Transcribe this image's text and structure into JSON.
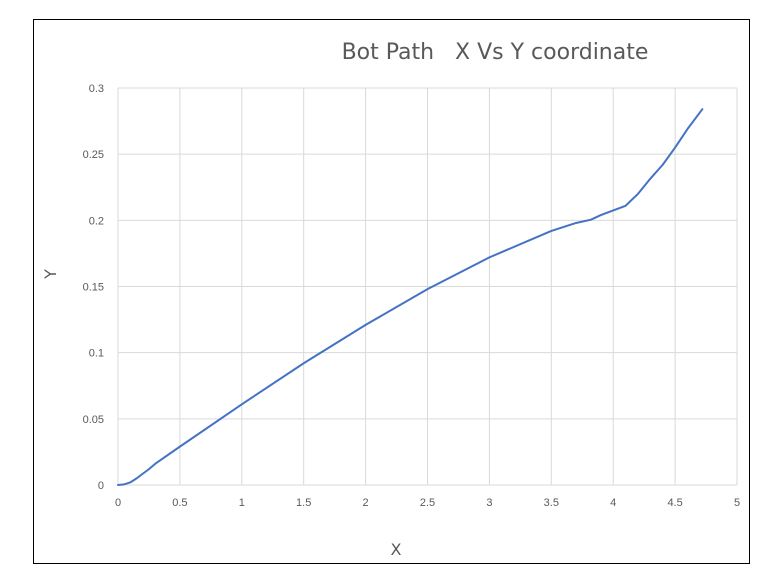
{
  "chart_data": {
    "type": "line",
    "title": "Bot Path   X Vs Y coordinate",
    "xlabel": "X",
    "ylabel": "Y",
    "xlim": [
      0,
      5
    ],
    "ylim": [
      0,
      0.3
    ],
    "x_ticks": [
      "0",
      "0.5",
      "1",
      "1.5",
      "2",
      "2.5",
      "3",
      "3.5",
      "4",
      "4.5",
      "5"
    ],
    "y_ticks": [
      "0",
      "0.05",
      "0.1",
      "0.15",
      "0.2",
      "0.25",
      "0.3"
    ],
    "grid": true,
    "legend": "none",
    "series": [
      {
        "color": "#4472c4",
        "x": [
          0,
          0.05,
          0.1,
          0.15,
          0.2,
          0.25,
          0.3,
          0.5,
          1.0,
          1.5,
          2.0,
          2.5,
          3.0,
          3.5,
          3.6,
          3.7,
          3.82,
          3.9,
          4.0,
          4.1,
          4.2,
          4.3,
          4.4,
          4.5,
          4.6,
          4.72
        ],
        "y": [
          0,
          0.0005,
          0.002,
          0.005,
          0.0085,
          0.012,
          0.016,
          0.029,
          0.061,
          0.092,
          0.121,
          0.148,
          0.172,
          0.192,
          0.195,
          0.198,
          0.2005,
          0.204,
          0.2075,
          0.211,
          0.22,
          0.2315,
          0.242,
          0.255,
          0.269,
          0.284
        ]
      }
    ]
  }
}
